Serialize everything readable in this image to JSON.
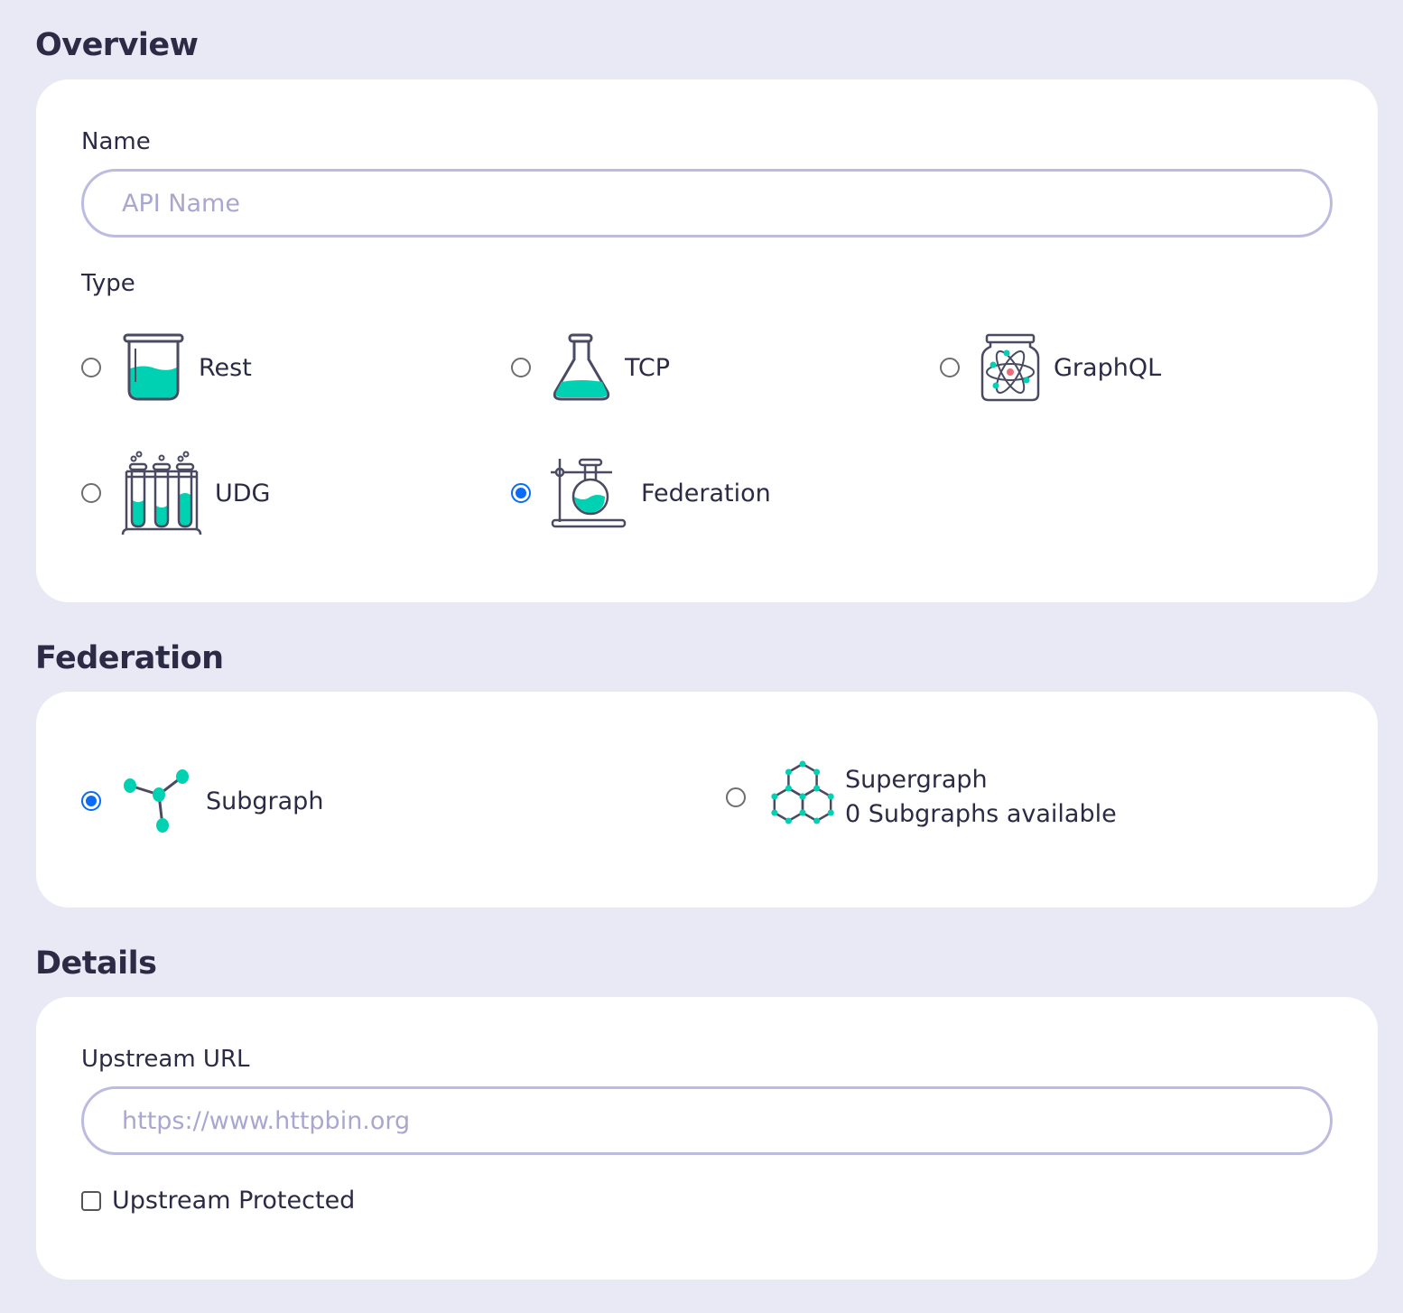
{
  "overview": {
    "heading": "Overview",
    "name_label": "Name",
    "name_value": "",
    "name_placeholder": "API Name",
    "type_label": "Type",
    "types": [
      {
        "label": "Rest",
        "icon": "beaker-icon",
        "selected": false
      },
      {
        "label": "TCP",
        "icon": "flask-icon",
        "selected": false
      },
      {
        "label": "GraphQL",
        "icon": "atom-jar-icon",
        "selected": false
      },
      {
        "label": "UDG",
        "icon": "test-tubes-icon",
        "selected": false
      },
      {
        "label": "Federation",
        "icon": "flask-stand-icon",
        "selected": true
      }
    ]
  },
  "federation": {
    "heading": "Federation",
    "options": [
      {
        "label": "Subgraph",
        "icon": "subgraph-icon",
        "selected": true
      },
      {
        "label": "Supergraph",
        "sublabel": "0 Subgraphs available",
        "icon": "supergraph-icon",
        "selected": false
      }
    ]
  },
  "details": {
    "heading": "Details",
    "upstream_label": "Upstream URL",
    "upstream_value": "",
    "upstream_placeholder": "https://www.httpbin.org",
    "protected_label": "Upstream Protected",
    "protected_checked": false
  },
  "colors": {
    "accent": "#00d1b2",
    "selected": "#0a6cf5",
    "background": "#e9e9f5",
    "text": "#2c2b45"
  }
}
